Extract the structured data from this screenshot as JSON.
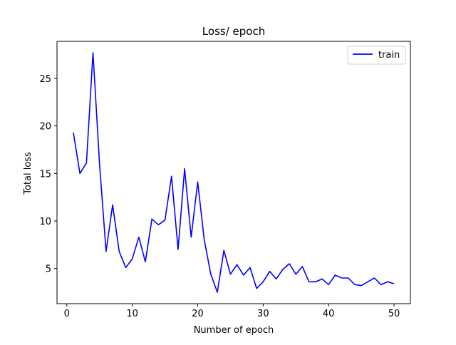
{
  "chart_data": {
    "type": "line",
    "title": "Loss/ epoch",
    "xlabel": "Number of epoch",
    "ylabel": "Total loss",
    "xlim": [
      -1.5,
      52.5
    ],
    "ylim": [
      1.3,
      28.9
    ],
    "xticks": [
      0,
      10,
      20,
      30,
      40,
      50
    ],
    "yticks": [
      5,
      10,
      15,
      20,
      25
    ],
    "grid": false,
    "legend_position": "top-right",
    "series": [
      {
        "name": "train",
        "color": "#0000ff",
        "x": [
          1,
          2,
          3,
          4,
          5,
          6,
          7,
          8,
          9,
          10,
          11,
          12,
          13,
          14,
          15,
          16,
          17,
          18,
          19,
          20,
          21,
          22,
          23,
          24,
          25,
          26,
          27,
          28,
          29,
          30,
          31,
          32,
          33,
          34,
          35,
          36,
          37,
          38,
          39,
          40,
          41,
          42,
          43,
          44,
          45,
          46,
          47,
          48,
          49,
          50
        ],
        "values": [
          19.3,
          15.0,
          16.1,
          27.7,
          16.0,
          6.8,
          11.7,
          6.8,
          5.1,
          6.0,
          8.3,
          5.7,
          10.2,
          9.6,
          10.1,
          14.7,
          7.0,
          15.5,
          8.3,
          14.1,
          8.0,
          4.4,
          2.5,
          6.9,
          4.4,
          5.4,
          4.3,
          5.1,
          2.9,
          3.6,
          4.7,
          3.9,
          4.9,
          5.5,
          4.4,
          5.2,
          3.6,
          3.6,
          3.9,
          3.3,
          4.3,
          4.0,
          4.0,
          3.3,
          3.2,
          3.6,
          4.0,
          3.3,
          3.6,
          3.4
        ]
      }
    ]
  }
}
